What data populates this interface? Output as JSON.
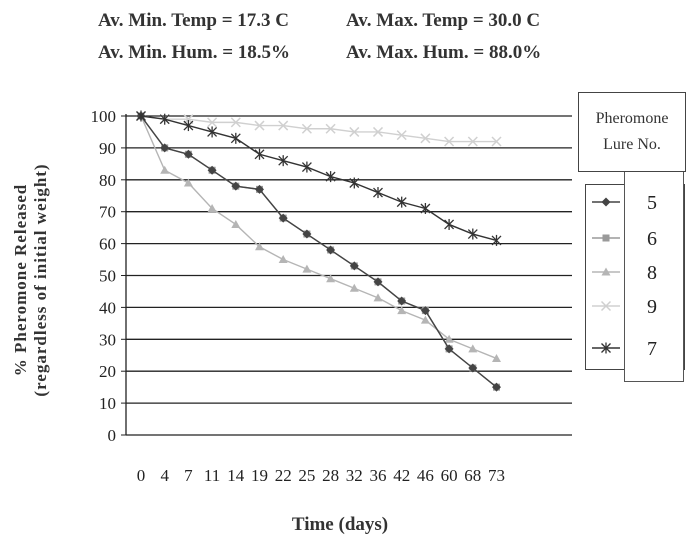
{
  "header": {
    "line1_left": "Av. Min. Temp = 17.3 C",
    "line1_right": "Av. Max. Temp = 30.0 C",
    "line2_left": "Av. Min. Hum. = 18.5%",
    "line2_right": "Av. Max. Hum. = 88.0%"
  },
  "legend": {
    "title_line1": "Pheromone",
    "title_line2": "Lure No."
  },
  "chart_data": {
    "type": "line",
    "xlabel": "Time (days)",
    "ylabel_line1": "% Pheromone Released",
    "ylabel_line2": "(regardless of initial weight)",
    "categories": [
      "0",
      "4",
      "7",
      "11",
      "14",
      "19",
      "22",
      "25",
      "28",
      "32",
      "36",
      "42",
      "46",
      "60",
      "68",
      "73"
    ],
    "ylim": [
      0,
      100
    ],
    "yticks": [
      0,
      10,
      20,
      30,
      40,
      50,
      60,
      70,
      80,
      90,
      100
    ],
    "grid": "horizontal",
    "legend_position": "right",
    "series": [
      {
        "name": "5",
        "color": "#444444",
        "marker": "diamond",
        "values": [
          100,
          90,
          88,
          83,
          78,
          77,
          68,
          63,
          58,
          53,
          48,
          42,
          39,
          27,
          21,
          15
        ]
      },
      {
        "name": "6",
        "color": "#9a9a9a",
        "marker": "square",
        "values": [
          100,
          90,
          88,
          83,
          78,
          77,
          68,
          63,
          58,
          53,
          48,
          42,
          39,
          27,
          21,
          15
        ]
      },
      {
        "name": "8",
        "color": "#b5b5b5",
        "marker": "triangle",
        "values": [
          100,
          83,
          79,
          71,
          66,
          59,
          55,
          52,
          49,
          46,
          43,
          39,
          36,
          30,
          27,
          24
        ]
      },
      {
        "name": "9",
        "color": "#d0d0d0",
        "marker": "x",
        "values": [
          100,
          99,
          99,
          98,
          98,
          97,
          97,
          96,
          96,
          95,
          95,
          94,
          93,
          92,
          92,
          92
        ]
      },
      {
        "name": "7",
        "color": "#333333",
        "marker": "star",
        "values": [
          100,
          99,
          97,
          95,
          93,
          88,
          86,
          84,
          81,
          79,
          76,
          73,
          71,
          66,
          63,
          61
        ]
      }
    ]
  }
}
